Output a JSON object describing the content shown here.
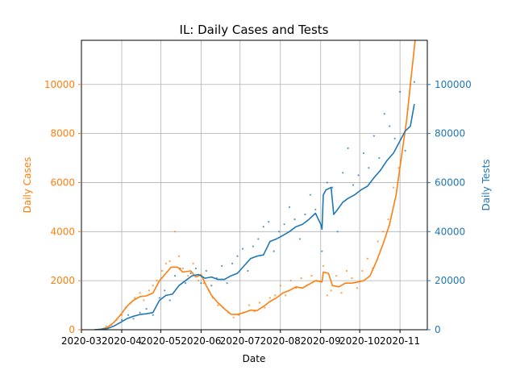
{
  "chart_data": {
    "type": "line",
    "title": "IL: Daily Cases and Tests",
    "xlabel": "Date",
    "ylabel_left": "Daily Cases",
    "ylabel_right": "Daily Tests",
    "x_domain": [
      "2020-03-01",
      "2020-11-22"
    ],
    "ylim_left": [
      0,
      11800
    ],
    "ylim_right": [
      0,
      118000
    ],
    "x_ticks": [
      "2020-03",
      "2020-04",
      "2020-05",
      "2020-06",
      "2020-07",
      "2020-08",
      "2020-09",
      "2020-10",
      "2020-11"
    ],
    "y_ticks_left": [
      0,
      2000,
      4000,
      6000,
      8000,
      10000
    ],
    "y_ticks_right": [
      0,
      20000,
      40000,
      60000,
      80000,
      100000
    ],
    "grid": true,
    "colors": {
      "cases": "#ff7f0e",
      "tests": "#1f77b4",
      "grid": "#b0b0b0",
      "axis": "#000000"
    },
    "series": [
      {
        "name": "Daily Cases",
        "axis": "left",
        "color": "#ff7f0e",
        "smoothed": [
          [
            "2020-03-11",
            0
          ],
          [
            "2020-03-16",
            20
          ],
          [
            "2020-03-21",
            100
          ],
          [
            "2020-03-26",
            300
          ],
          [
            "2020-03-31",
            600
          ],
          [
            "2020-04-05",
            950
          ],
          [
            "2020-04-10",
            1200
          ],
          [
            "2020-04-15",
            1350
          ],
          [
            "2020-04-20",
            1380
          ],
          [
            "2020-04-25",
            1500
          ],
          [
            "2020-04-30",
            2000
          ],
          [
            "2020-05-05",
            2300
          ],
          [
            "2020-05-09",
            2550
          ],
          [
            "2020-05-14",
            2550
          ],
          [
            "2020-05-18",
            2350
          ],
          [
            "2020-05-24",
            2400
          ],
          [
            "2020-05-28",
            2150
          ],
          [
            "2020-06-01",
            2250
          ],
          [
            "2020-06-05",
            1800
          ],
          [
            "2020-06-09",
            1400
          ],
          [
            "2020-06-14",
            1100
          ],
          [
            "2020-06-19",
            850
          ],
          [
            "2020-06-24",
            630
          ],
          [
            "2020-06-29",
            620
          ],
          [
            "2020-07-04",
            700
          ],
          [
            "2020-07-09",
            800
          ],
          [
            "2020-07-14",
            780
          ],
          [
            "2020-07-19",
            950
          ],
          [
            "2020-07-24",
            1150
          ],
          [
            "2020-07-29",
            1300
          ],
          [
            "2020-08-03",
            1500
          ],
          [
            "2020-08-08",
            1600
          ],
          [
            "2020-08-13",
            1750
          ],
          [
            "2020-08-18",
            1700
          ],
          [
            "2020-08-23",
            1850
          ],
          [
            "2020-08-28",
            2000
          ],
          [
            "2020-09-02",
            1950
          ],
          [
            "2020-09-03",
            2350
          ],
          [
            "2020-09-07",
            2300
          ],
          [
            "2020-09-10",
            1800
          ],
          [
            "2020-09-15",
            1750
          ],
          [
            "2020-09-20",
            1900
          ],
          [
            "2020-09-25",
            1900
          ],
          [
            "2020-09-30",
            1950
          ],
          [
            "2020-10-04",
            2000
          ],
          [
            "2020-10-09",
            2200
          ],
          [
            "2020-10-14",
            2800
          ],
          [
            "2020-10-19",
            3500
          ],
          [
            "2020-10-24",
            4300
          ],
          [
            "2020-10-29",
            5500
          ],
          [
            "2020-11-02",
            7000
          ],
          [
            "2020-11-06",
            8500
          ],
          [
            "2020-11-09",
            10000
          ],
          [
            "2020-11-12",
            11500
          ],
          [
            "2020-11-14",
            12500
          ]
        ],
        "daily_points": [
          [
            "2020-03-20",
            150
          ],
          [
            "2020-03-24",
            200
          ],
          [
            "2020-03-28",
            400
          ],
          [
            "2020-04-01",
            600
          ],
          [
            "2020-04-04",
            900
          ],
          [
            "2020-04-08",
            1100
          ],
          [
            "2020-04-11",
            1300
          ],
          [
            "2020-04-15",
            1500
          ],
          [
            "2020-04-18",
            1200
          ],
          [
            "2020-04-22",
            1600
          ],
          [
            "2020-04-25",
            1800
          ],
          [
            "2020-04-28",
            2000
          ],
          [
            "2020-05-02",
            2400
          ],
          [
            "2020-05-05",
            2700
          ],
          [
            "2020-05-08",
            2800
          ],
          [
            "2020-05-12",
            4000
          ],
          [
            "2020-05-15",
            3000
          ],
          [
            "2020-05-18",
            2500
          ],
          [
            "2020-05-22",
            2200
          ],
          [
            "2020-05-26",
            2700
          ],
          [
            "2020-05-30",
            2000
          ],
          [
            "2020-06-03",
            1900
          ],
          [
            "2020-06-07",
            1600
          ],
          [
            "2020-06-10",
            1300
          ],
          [
            "2020-06-14",
            1000
          ],
          [
            "2020-06-18",
            900
          ],
          [
            "2020-06-22",
            700
          ],
          [
            "2020-06-26",
            500
          ],
          [
            "2020-06-30",
            600
          ],
          [
            "2020-07-04",
            700
          ],
          [
            "2020-07-08",
            1000
          ],
          [
            "2020-07-12",
            750
          ],
          [
            "2020-07-16",
            1100
          ],
          [
            "2020-07-20",
            900
          ],
          [
            "2020-07-24",
            1300
          ],
          [
            "2020-07-28",
            1400
          ],
          [
            "2020-08-01",
            1800
          ],
          [
            "2020-08-05",
            1400
          ],
          [
            "2020-08-09",
            2000
          ],
          [
            "2020-08-13",
            1700
          ],
          [
            "2020-08-17",
            2100
          ],
          [
            "2020-08-21",
            1800
          ],
          [
            "2020-08-25",
            2200
          ],
          [
            "2020-08-29",
            2000
          ],
          [
            "2020-09-03",
            2600
          ],
          [
            "2020-09-06",
            1400
          ],
          [
            "2020-09-09",
            1600
          ],
          [
            "2020-09-13",
            2200
          ],
          [
            "2020-09-17",
            1500
          ],
          [
            "2020-09-21",
            2400
          ],
          [
            "2020-09-25",
            2100
          ],
          [
            "2020-09-29",
            1700
          ],
          [
            "2020-10-03",
            2400
          ],
          [
            "2020-10-07",
            2900
          ],
          [
            "2020-10-11",
            2500
          ],
          [
            "2020-10-15",
            3600
          ],
          [
            "2020-10-19",
            4000
          ],
          [
            "2020-10-23",
            4500
          ],
          [
            "2020-10-27",
            5800
          ],
          [
            "2020-10-31",
            6600
          ],
          [
            "2020-11-04",
            8000
          ],
          [
            "2020-11-07",
            9000
          ],
          [
            "2020-11-10",
            12000
          ]
        ]
      },
      {
        "name": "Daily Tests",
        "axis": "right",
        "color": "#1f77b4",
        "smoothed": [
          [
            "2020-03-11",
            0
          ],
          [
            "2020-03-16",
            200
          ],
          [
            "2020-03-21",
            500
          ],
          [
            "2020-03-26",
            1500
          ],
          [
            "2020-03-31",
            3000
          ],
          [
            "2020-04-05",
            4500
          ],
          [
            "2020-04-10",
            5500
          ],
          [
            "2020-04-15",
            6200
          ],
          [
            "2020-04-20",
            6500
          ],
          [
            "2020-04-25",
            7000
          ],
          [
            "2020-04-30",
            12000
          ],
          [
            "2020-05-05",
            14000
          ],
          [
            "2020-05-10",
            14500
          ],
          [
            "2020-05-15",
            18000
          ],
          [
            "2020-05-20",
            20000
          ],
          [
            "2020-05-25",
            22000
          ],
          [
            "2020-05-30",
            22500
          ],
          [
            "2020-06-04",
            21000
          ],
          [
            "2020-06-09",
            21500
          ],
          [
            "2020-06-14",
            20500
          ],
          [
            "2020-06-19",
            20500
          ],
          [
            "2020-06-24",
            22000
          ],
          [
            "2020-06-29",
            23000
          ],
          [
            "2020-07-04",
            26000
          ],
          [
            "2020-07-09",
            29000
          ],
          [
            "2020-07-14",
            30000
          ],
          [
            "2020-07-19",
            30500
          ],
          [
            "2020-07-24",
            36000
          ],
          [
            "2020-07-29",
            37000
          ],
          [
            "2020-08-03",
            38500
          ],
          [
            "2020-08-08",
            40000
          ],
          [
            "2020-08-13",
            42000
          ],
          [
            "2020-08-18",
            43000
          ],
          [
            "2020-08-23",
            45000
          ],
          [
            "2020-08-28",
            47500
          ],
          [
            "2020-09-01",
            43000
          ],
          [
            "2020-09-02",
            41000
          ],
          [
            "2020-09-03",
            55000
          ],
          [
            "2020-09-05",
            57000
          ],
          [
            "2020-09-09",
            58000
          ],
          [
            "2020-09-11",
            47000
          ],
          [
            "2020-09-14",
            49000
          ],
          [
            "2020-09-18",
            52000
          ],
          [
            "2020-09-22",
            53500
          ],
          [
            "2020-09-27",
            55000
          ],
          [
            "2020-10-02",
            57000
          ],
          [
            "2020-10-07",
            58500
          ],
          [
            "2020-10-12",
            62000
          ],
          [
            "2020-10-17",
            65000
          ],
          [
            "2020-10-22",
            69000
          ],
          [
            "2020-10-27",
            72000
          ],
          [
            "2020-11-01",
            77000
          ],
          [
            "2020-11-05",
            81000
          ],
          [
            "2020-11-09",
            83000
          ],
          [
            "2020-11-12",
            92000
          ]
        ],
        "daily_points": [
          [
            "2020-04-01",
            4000
          ],
          [
            "2020-04-06",
            6000
          ],
          [
            "2020-04-10",
            4500
          ],
          [
            "2020-04-15",
            7000
          ],
          [
            "2020-04-20",
            8500
          ],
          [
            "2020-04-25",
            6000
          ],
          [
            "2020-04-30",
            13000
          ],
          [
            "2020-05-04",
            16000
          ],
          [
            "2020-05-08",
            12000
          ],
          [
            "2020-05-12",
            22000
          ],
          [
            "2020-05-16",
            25000
          ],
          [
            "2020-05-20",
            19000
          ],
          [
            "2020-05-24",
            23000
          ],
          [
            "2020-05-28",
            25000
          ],
          [
            "2020-06-01",
            19000
          ],
          [
            "2020-06-05",
            24000
          ],
          [
            "2020-06-09",
            18000
          ],
          [
            "2020-06-13",
            21000
          ],
          [
            "2020-06-17",
            26000
          ],
          [
            "2020-06-21",
            19000
          ],
          [
            "2020-06-25",
            27000
          ],
          [
            "2020-06-29",
            30000
          ],
          [
            "2020-07-03",
            33000
          ],
          [
            "2020-07-07",
            24000
          ],
          [
            "2020-07-11",
            34000
          ],
          [
            "2020-07-15",
            37000
          ],
          [
            "2020-07-19",
            42000
          ],
          [
            "2020-07-23",
            44000
          ],
          [
            "2020-07-27",
            32000
          ],
          [
            "2020-07-31",
            40000
          ],
          [
            "2020-08-04",
            43000
          ],
          [
            "2020-08-08",
            50000
          ],
          [
            "2020-08-12",
            45000
          ],
          [
            "2020-08-16",
            37000
          ],
          [
            "2020-08-20",
            47000
          ],
          [
            "2020-08-24",
            55000
          ],
          [
            "2020-08-28",
            49000
          ],
          [
            "2020-09-02",
            32000
          ],
          [
            "2020-09-06",
            60000
          ],
          [
            "2020-09-10",
            58000
          ],
          [
            "2020-09-14",
            40000
          ],
          [
            "2020-09-18",
            64000
          ],
          [
            "2020-09-22",
            74000
          ],
          [
            "2020-09-26",
            59000
          ],
          [
            "2020-09-30",
            63000
          ],
          [
            "2020-10-04",
            72000
          ],
          [
            "2020-10-08",
            66000
          ],
          [
            "2020-10-12",
            79000
          ],
          [
            "2020-10-16",
            70000
          ],
          [
            "2020-10-20",
            88000
          ],
          [
            "2020-10-24",
            83000
          ],
          [
            "2020-10-28",
            78000
          ],
          [
            "2020-11-01",
            97000
          ],
          [
            "2020-11-05",
            73000
          ],
          [
            "2020-11-09",
            100000
          ],
          [
            "2020-11-12",
            101000
          ]
        ]
      }
    ]
  }
}
